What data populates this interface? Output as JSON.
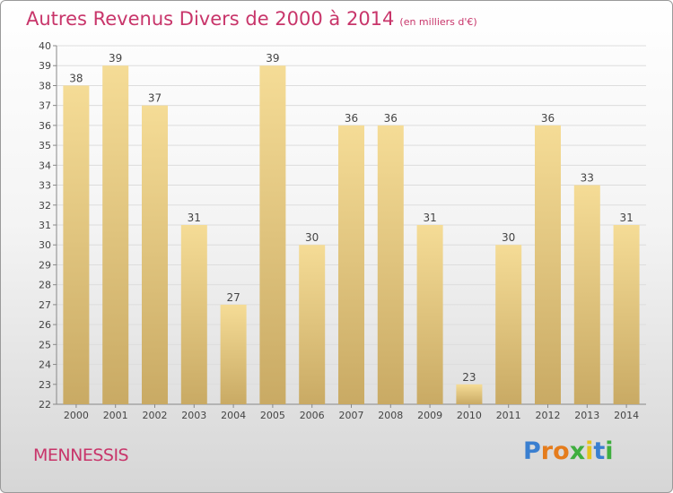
{
  "title": "Autres Revenus Divers de 2000 à 2014",
  "subtitle": "(en milliers d'€)",
  "town": "MENNESSIS",
  "logo": {
    "letters": [
      {
        "ch": "P",
        "color": "#3a7fd0"
      },
      {
        "ch": "r",
        "color": "#e57c1c"
      },
      {
        "ch": "o",
        "color": "#e57c1c"
      },
      {
        "ch": "x",
        "color": "#3fae3f"
      },
      {
        "ch": "i",
        "color": "#e5c31c"
      },
      {
        "ch": "t",
        "color": "#3a7fd0"
      },
      {
        "ch": "i",
        "color": "#3fae3f"
      }
    ]
  },
  "chart_data": {
    "type": "bar",
    "categories": [
      "2000",
      "2001",
      "2002",
      "2003",
      "2004",
      "2005",
      "2006",
      "2007",
      "2008",
      "2009",
      "2010",
      "2011",
      "2012",
      "2013",
      "2014"
    ],
    "values": [
      38,
      39,
      37,
      31,
      27,
      39,
      30,
      36,
      36,
      31,
      23,
      30,
      36,
      33,
      31
    ],
    "ylim": [
      22,
      40
    ],
    "yticks": [
      22,
      23,
      24,
      25,
      26,
      27,
      28,
      29,
      30,
      31,
      32,
      33,
      34,
      35,
      36,
      37,
      38,
      39,
      40
    ],
    "grid": true,
    "bar_color_top": "#f5dc96",
    "bar_color_bottom": "#c9aa64",
    "text_color": "#444444"
  }
}
